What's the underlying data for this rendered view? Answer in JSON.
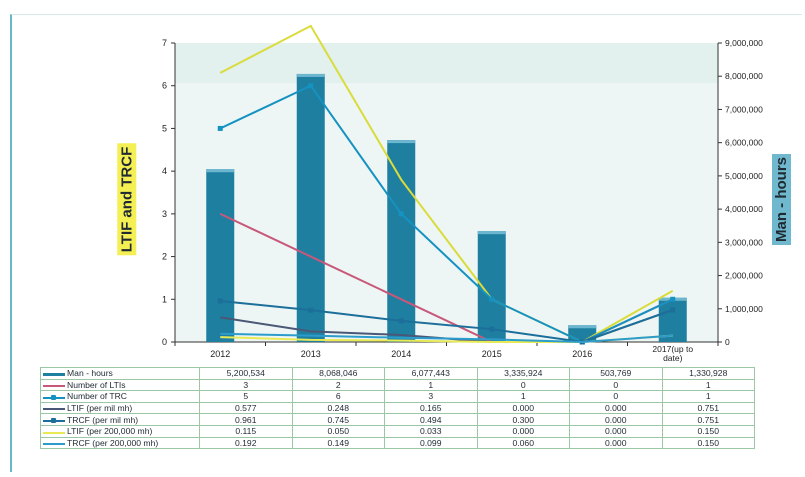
{
  "chart_data": {
    "type": "bar",
    "title": "",
    "xlabel": "",
    "ylabel": "LTIF and TRCF",
    "y2label": "Man - hours",
    "categories": [
      "2012",
      "2013",
      "2014",
      "2015",
      "2016",
      "2017(up to date)"
    ],
    "ylim": [
      0,
      7
    ],
    "yticks": [
      "0",
      "1",
      "2",
      "3",
      "4",
      "5",
      "6",
      "7"
    ],
    "y2lim": [
      0,
      9000000
    ],
    "y2ticks": [
      "0",
      "1,000,000",
      "2,000,000",
      "3,000,000",
      "4,000,000",
      "5,000,000",
      "6,000,000",
      "7,000,000",
      "8,000,000",
      "9,000,000"
    ],
    "grid": false,
    "legend": "data-table",
    "series": [
      {
        "name": "Man - hours",
        "kind": "bar",
        "axis": "right",
        "color": "#1f7fa0",
        "values": [
          5200534,
          8068046,
          6077443,
          3335924,
          503769,
          1330928
        ],
        "labels": [
          "5,200,534",
          "8,068,046",
          "6,077,443",
          "3,335,924",
          "503,769",
          "1,330,928"
        ]
      },
      {
        "name": "Number of LTIs",
        "kind": "line",
        "axis": "left",
        "color": "#c8587a",
        "values": [
          3,
          2,
          1,
          0,
          0,
          1
        ],
        "labels": [
          "3",
          "2",
          "1",
          "0",
          "0",
          "1"
        ]
      },
      {
        "name": "Number of TRC",
        "kind": "line",
        "axis": "left",
        "color": "#1592c2",
        "marker": true,
        "values": [
          5,
          6,
          3,
          1,
          0,
          1
        ],
        "labels": [
          "5",
          "6",
          "3",
          "1",
          "0",
          "1"
        ]
      },
      {
        "name": "LTIF (per mil mh)",
        "kind": "line",
        "axis": "left",
        "color": "#4a5877",
        "values": [
          0.577,
          0.248,
          0.165,
          0.0,
          0.0,
          0.751
        ],
        "labels": [
          "0.577",
          "0.248",
          "0.165",
          "0.000",
          "0.000",
          "0.751"
        ]
      },
      {
        "name": "TRCF (per mil mh)",
        "kind": "line",
        "axis": "left",
        "color": "#1b6f9a",
        "marker": true,
        "values": [
          0.961,
          0.745,
          0.494,
          0.3,
          0.0,
          0.751
        ],
        "labels": [
          "0.961",
          "0.745",
          "0.494",
          "0.300",
          "0.000",
          "0.751"
        ]
      },
      {
        "name": "LTIF (per 200,000 mh)",
        "kind": "line",
        "axis": "left",
        "color": "#e8ea55",
        "values": [
          0.115,
          0.05,
          0.033,
          0.0,
          0.0,
          0.15
        ],
        "labels": [
          "0.115",
          "0.050",
          "0.033",
          "0.000",
          "0.000",
          "0.150"
        ]
      },
      {
        "name": "TRCF (per 200,000 mh)",
        "kind": "line",
        "axis": "left",
        "color": "#2c9ccc",
        "values": [
          0.192,
          0.149,
          0.099,
          0.06,
          0.0,
          0.15
        ],
        "labels": [
          "0.192",
          "0.149",
          "0.099",
          "0.060",
          "0.000",
          "0.150"
        ]
      }
    ],
    "overlay_lines": [
      {
        "color": "#d9dc3a",
        "values": [
          6.3,
          7.4,
          3.8,
          1.0,
          0.0,
          1.2
        ]
      }
    ]
  }
}
